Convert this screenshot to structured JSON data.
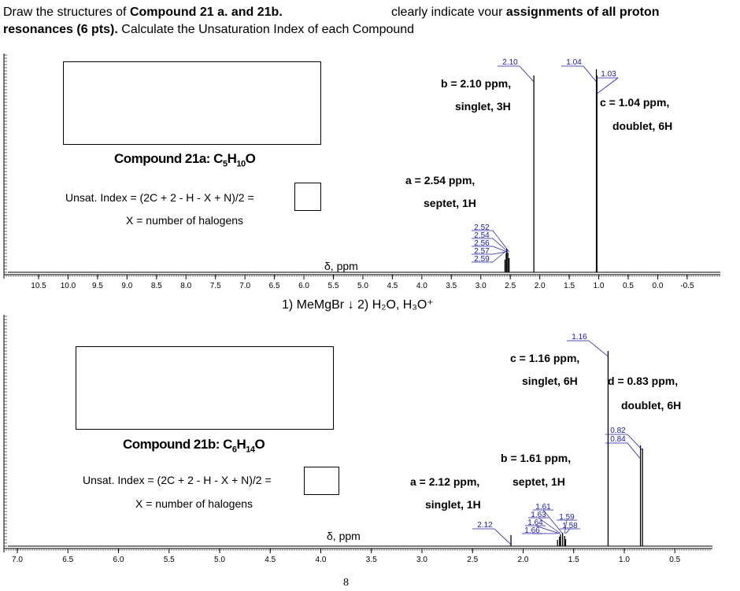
{
  "header": {
    "line1_part1": "Draw the structures of ",
    "line1_bold": "Compound 21 a. and 21b.",
    "line1_part2": "clearly indicate vour ",
    "line1_bold2": "assignments of all proton",
    "line2_bold": "resonances (6 pts).",
    "line2_part": " Calculate the Unsaturation Index",
    "line2_tail": " of each Compound"
  },
  "spectrum_a": {
    "compound": "Compound 21a: C5H10O",
    "unsat": "Unsat. Index = (2C + 2 - H - X + N)/2 =",
    "xnote": "X = number of halogens",
    "axis_label": "δ, ppm",
    "ticks": [
      "10.5",
      "10.0",
      "9.5",
      "9.0",
      "8.5",
      "8.0",
      "7.5",
      "7.0",
      "6.5",
      "6.0",
      "5.5",
      "5.0",
      "4.5",
      "4.0",
      "3.5",
      "3.0",
      "2.5",
      "2.0",
      "1.5",
      "1.0",
      "0.5",
      "0.0",
      "-0.5"
    ],
    "ann_b1": "b = 2.10 ppm,",
    "ann_b2": "singlet, 3H",
    "ann_a1": "a = 2.54 ppm,",
    "ann_a2": "septet, 1H",
    "ann_c1": "c = 1.04 ppm,",
    "ann_c2": "doublet, 6H",
    "peak_labels": [
      "2.10",
      "1.04",
      "1.03"
    ],
    "cluster_labels": [
      "2.52",
      "2.54",
      "2.56",
      "2.57",
      "2.59"
    ]
  },
  "reaction": "1) MeMgBr ↓ 2) H₂O, H₃O⁺",
  "spectrum_b": {
    "compound": "Compound 21b: C6H14O",
    "unsat": "Unsat. Index = (2C + 2 - H - X + N)/2 =",
    "xnote": "X = number of halogens",
    "axis_label": "δ, ppm",
    "ticks": [
      "7.0",
      "6.5",
      "6.0",
      "5.5",
      "5.0",
      "4.5",
      "4.0",
      "3.5",
      "3.0",
      "2.5",
      "2.0",
      "1.5",
      "1.0",
      "0.5"
    ],
    "ann_c1": "c = 1.16 ppm,",
    "ann_c2": "singlet, 6H",
    "ann_d1": "d = 0.83 ppm,",
    "ann_d2": "doublet, 6H",
    "ann_b1": "b = 1.61 ppm,",
    "ann_b2": "septet, 1H",
    "ann_a1": "a = 2.12 ppm,",
    "ann_a2": "singlet, 1H",
    "peak_labels": [
      "1.16",
      "0.82",
      "0.84",
      "2.12"
    ],
    "cluster_labels": [
      "1.61",
      "1.63",
      "1.64",
      "1.66",
      "1.59",
      "1.58"
    ]
  },
  "page_number": "8"
}
